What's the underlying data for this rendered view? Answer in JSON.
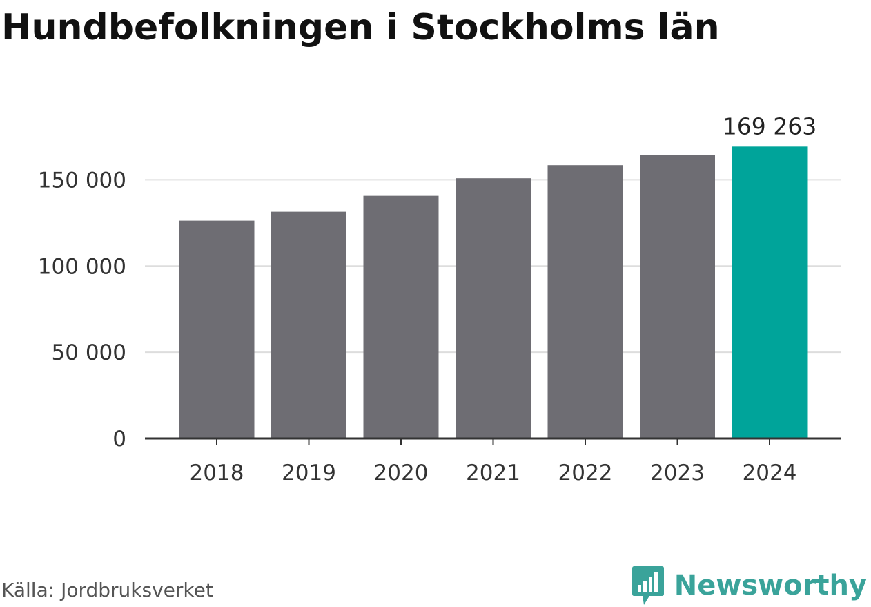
{
  "colors": {
    "bar": "#6e6d73",
    "highlight": "#00a49a",
    "grid": "#dddddd",
    "axis": "#333333",
    "text": "#333333",
    "brand": "#3aa39a"
  },
  "chart_data": {
    "type": "bar",
    "title": "Hundbefolkningen i Stockholms län",
    "categories": [
      "2018",
      "2019",
      "2020",
      "2021",
      "2022",
      "2023",
      "2024"
    ],
    "values": [
      126300,
      131500,
      140700,
      150900,
      158500,
      164300,
      169263
    ],
    "highlight_index": 6,
    "data_labels": [
      {
        "index": 6,
        "text": "169 263"
      }
    ],
    "ylim": [
      0,
      175000
    ],
    "yticks": [
      0,
      50000,
      100000,
      150000
    ],
    "ytick_labels": [
      "0",
      "50 000",
      "100 000",
      "150 000"
    ],
    "xlabel": "",
    "ylabel": "",
    "grid": true,
    "legend": "none"
  },
  "footer": {
    "source": "Källa: Jordbruksverket",
    "brand_name": "Newsworthy",
    "brand_icon": "bar-chart-speech-icon"
  }
}
